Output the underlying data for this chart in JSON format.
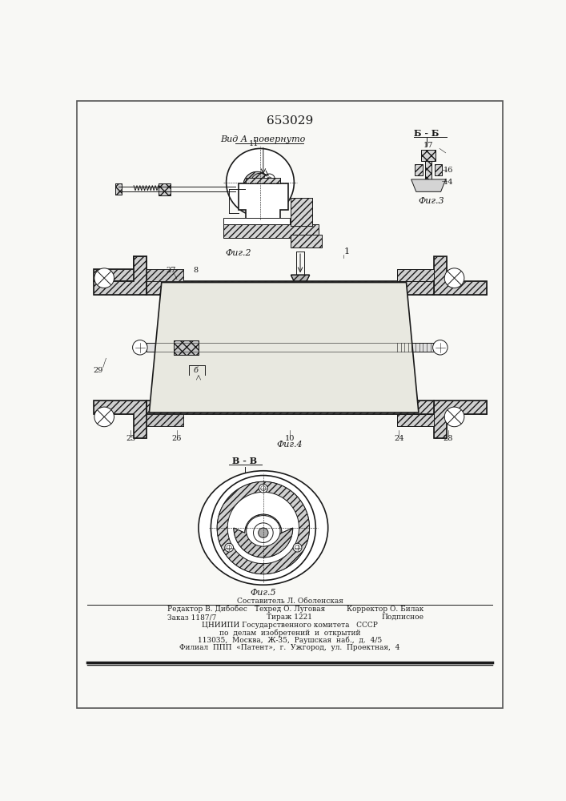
{
  "patent_number": "653029",
  "bg": "#f8f8f5",
  "lc": "#1a1a1a",
  "title_view_a": "Вид А  повернуто",
  "fig2_label": "Фиг.2",
  "fig3_label": "Фиг.3",
  "fig4_label": "Фиг.4",
  "fig5_label": "Фиг.5",
  "section_bb": "Б - Б",
  "section_vv": "В - В",
  "footer_col1_line1": "Редактор В. Дибобес",
  "footer_col1_line2": "Заказ 1187/7",
  "footer_col2_line0": "Составитель Л. Оболенская",
  "footer_col2_line1": "Техред О. Луговая",
  "footer_col2_line2": "Тираж 1221",
  "footer_col3_line1": "Корректор О. Билак",
  "footer_col3_line2": "Подписное",
  "footer_center1": "ЦНИИПИ Государственного комитета   СССР",
  "footer_center2": "по  делам  изобретений  и  открытий",
  "footer_center3": "113035,  Москва,  Ж-35,  Раушская  наб.,  д.  4/5",
  "footer_center4": "Филиал  ППП  «Патент»,  г.  Ужгород,  ул.  Проектная,  4"
}
